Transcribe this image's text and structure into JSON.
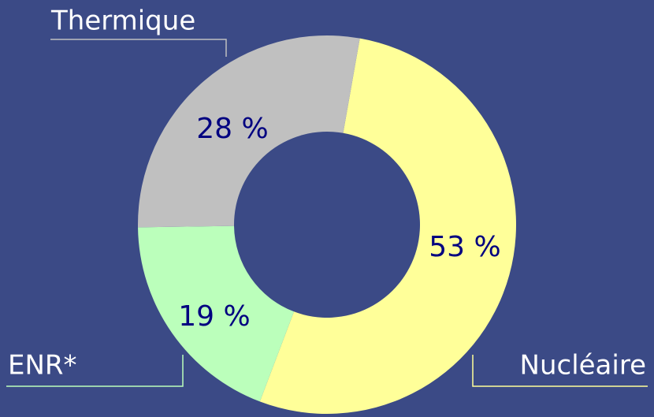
{
  "chart_data": {
    "type": "donut",
    "categories": [
      "Nucléaire",
      "ENR*",
      "Thermique"
    ],
    "values": [
      53,
      19,
      28
    ],
    "value_labels": [
      "53 %",
      "19 %",
      "28 %"
    ],
    "colors": [
      "#ffff99",
      "#bbffbb",
      "#c0c0c0"
    ]
  }
}
